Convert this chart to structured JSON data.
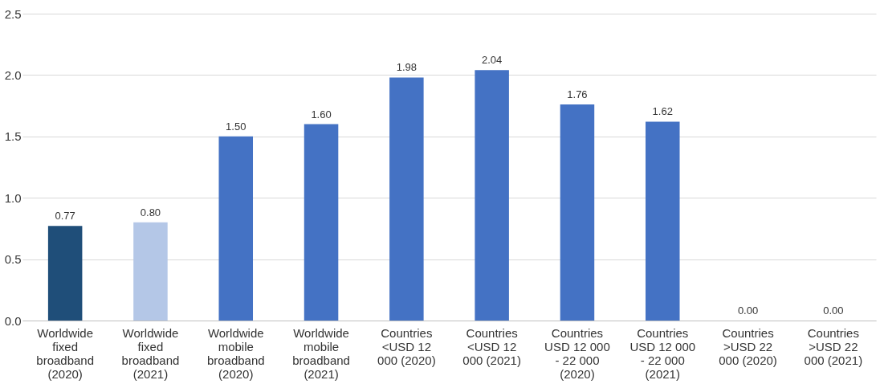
{
  "chart_data": {
    "type": "bar",
    "categories": [
      "Worldwide fixed broadband (2020)",
      "Worldwide fixed broadband (2021)",
      "Worldwide mobile broadband (2020)",
      "Worldwide mobile broadband (2021)",
      "Countries <USD 12 000 (2020)",
      "Countries <USD 12 000 (2021)",
      "Countries USD 12 000 - 22 000 (2020)",
      "Countries USD 12 000 - 22 000 (2021)",
      "Countries >USD 22 000 (2020)",
      "Countries >USD 22 000 (2021)"
    ],
    "values": [
      0.77,
      0.8,
      1.5,
      1.6,
      1.98,
      2.04,
      1.76,
      1.62,
      0.0,
      0.0
    ],
    "colors": [
      "#1f4e79",
      "#b4c7e7",
      "#4472c4",
      "#4472c4",
      "#4472c4",
      "#4472c4",
      "#4472c4",
      "#4472c4",
      "#4472c4",
      "#4472c4"
    ],
    "value_labels": [
      "0.77",
      "0.80",
      "1.50",
      "1.60",
      "1.98",
      "2.04",
      "1.76",
      "1.62",
      "0.00",
      "0.00"
    ],
    "ylim": [
      0,
      2.5
    ],
    "yticks": [
      {
        "value": 0,
        "label": "0.0"
      },
      {
        "value": 0.5,
        "label": "0.5"
      },
      {
        "value": 1,
        "label": "1.0"
      },
      {
        "value": 1.5,
        "label": "1.5"
      },
      {
        "value": 2,
        "label": "2.0"
      },
      {
        "value": 2.5,
        "label": "2.5"
      }
    ],
    "grid": "y"
  }
}
